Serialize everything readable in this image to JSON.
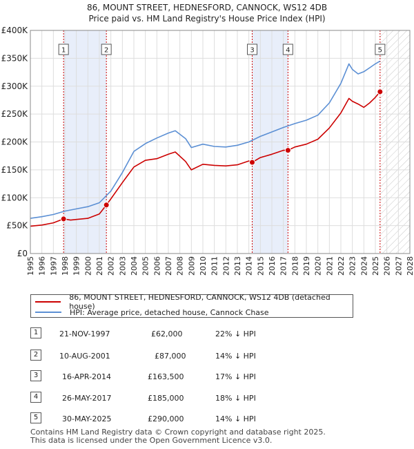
{
  "chart_data": {
    "type": "line",
    "title": "86, MOUNT STREET, HEDNESFORD, CANNOCK, WS12 4DB",
    "subtitle": "Price paid vs. HM Land Registry's House Price Index (HPI)",
    "xlim": [
      1995,
      2028
    ],
    "ylim": [
      0,
      400000
    ],
    "x_ticks": [
      "1995",
      "1996",
      "1997",
      "1998",
      "1999",
      "2000",
      "2001",
      "2002",
      "2003",
      "2004",
      "2005",
      "2006",
      "2007",
      "2008",
      "2009",
      "2010",
      "2011",
      "2012",
      "2013",
      "2014",
      "2015",
      "2016",
      "2017",
      "2018",
      "2019",
      "2020",
      "2021",
      "2022",
      "2023",
      "2024",
      "2025",
      "2026",
      "2027",
      "2028"
    ],
    "y_ticks": [
      {
        "value": 0,
        "label": "£0"
      },
      {
        "value": 50000,
        "label": "£50K"
      },
      {
        "value": 100000,
        "label": "£100K"
      },
      {
        "value": 150000,
        "label": "£150K"
      },
      {
        "value": 200000,
        "label": "£200K"
      },
      {
        "value": 250000,
        "label": "£250K"
      },
      {
        "value": 300000,
        "label": "£300K"
      },
      {
        "value": 350000,
        "label": "£350K"
      },
      {
        "value": 400000,
        "label": "£400K"
      }
    ],
    "shaded_ranges": [
      [
        1997.89,
        2001.61
      ],
      [
        2014.29,
        2017.4
      ]
    ],
    "forecast_start": 2025.41,
    "series": [
      {
        "name": "86, MOUNT STREET, HEDNESFORD, CANNOCK, WS12 4DB (detached house)",
        "color": "#cc0000",
        "points": [
          [
            1995,
            49000
          ],
          [
            1996,
            51000
          ],
          [
            1997,
            55000
          ],
          [
            1997.89,
            62000
          ],
          [
            1998.5,
            60000
          ],
          [
            1999,
            61000
          ],
          [
            2000,
            63000
          ],
          [
            2001,
            71000
          ],
          [
            2001.61,
            87000
          ],
          [
            2002,
            98000
          ],
          [
            2003,
            127000
          ],
          [
            2004,
            155000
          ],
          [
            2005,
            167000
          ],
          [
            2006,
            170000
          ],
          [
            2007,
            178000
          ],
          [
            2007.6,
            182000
          ],
          [
            2008.5,
            165000
          ],
          [
            2009,
            150000
          ],
          [
            2010,
            160000
          ],
          [
            2011,
            158000
          ],
          [
            2012,
            157000
          ],
          [
            2013,
            159000
          ],
          [
            2014,
            166000
          ],
          [
            2014.29,
            163500
          ],
          [
            2015,
            172000
          ],
          [
            2016,
            178000
          ],
          [
            2017,
            185000
          ],
          [
            2017.4,
            185000
          ],
          [
            2018,
            191000
          ],
          [
            2019,
            196000
          ],
          [
            2020,
            205000
          ],
          [
            2021,
            225000
          ],
          [
            2022,
            252000
          ],
          [
            2022.7,
            278000
          ],
          [
            2023,
            273000
          ],
          [
            2023.5,
            268000
          ],
          [
            2024,
            262000
          ],
          [
            2024.5,
            270000
          ],
          [
            2025,
            280000
          ],
          [
            2025.41,
            290000
          ]
        ]
      },
      {
        "name": "HPI: Average price, detached house, Cannock Chase",
        "color": "#5b8fd4",
        "points": [
          [
            1995,
            63000
          ],
          [
            1996,
            66000
          ],
          [
            1997,
            70000
          ],
          [
            1998,
            76000
          ],
          [
            1999,
            80000
          ],
          [
            2000,
            84000
          ],
          [
            2001,
            91000
          ],
          [
            2002,
            112000
          ],
          [
            2003,
            145000
          ],
          [
            2004,
            183000
          ],
          [
            2005,
            197000
          ],
          [
            2006,
            207000
          ],
          [
            2007,
            216000
          ],
          [
            2007.6,
            220000
          ],
          [
            2008.5,
            206000
          ],
          [
            2009,
            190000
          ],
          [
            2010,
            196000
          ],
          [
            2011,
            192000
          ],
          [
            2012,
            191000
          ],
          [
            2013,
            194000
          ],
          [
            2014,
            200000
          ],
          [
            2015,
            210000
          ],
          [
            2016,
            218000
          ],
          [
            2017,
            226000
          ],
          [
            2018,
            233000
          ],
          [
            2019,
            239000
          ],
          [
            2020,
            248000
          ],
          [
            2021,
            270000
          ],
          [
            2022,
            305000
          ],
          [
            2022.7,
            340000
          ],
          [
            2023,
            330000
          ],
          [
            2023.5,
            322000
          ],
          [
            2024,
            326000
          ],
          [
            2024.5,
            333000
          ],
          [
            2025,
            340000
          ],
          [
            2025.41,
            345000
          ]
        ]
      }
    ],
    "sales": [
      {
        "id": "1",
        "x": 1997.89,
        "y": 62000
      },
      {
        "id": "2",
        "x": 2001.61,
        "y": 87000
      },
      {
        "id": "3",
        "x": 2014.29,
        "y": 163500
      },
      {
        "id": "4",
        "x": 2017.4,
        "y": 185000
      },
      {
        "id": "5",
        "x": 2025.41,
        "y": 290000
      }
    ]
  },
  "legend": {
    "property_label": "86, MOUNT STREET, HEDNESFORD, CANNOCK, WS12 4DB (detached house)",
    "hpi_label": "HPI: Average price, detached house, Cannock Chase"
  },
  "sales_table": [
    {
      "num": "1",
      "date": "21-NOV-1997",
      "price": "£62,000",
      "hpi": "22% ↓ HPI"
    },
    {
      "num": "2",
      "date": "10-AUG-2001",
      "price": "£87,000",
      "hpi": "14% ↓ HPI"
    },
    {
      "num": "3",
      "date": "16-APR-2014",
      "price": "£163,500",
      "hpi": "17% ↓ HPI"
    },
    {
      "num": "4",
      "date": "26-MAY-2017",
      "price": "£185,000",
      "hpi": "18% ↓ HPI"
    },
    {
      "num": "5",
      "date": "30-MAY-2025",
      "price": "£290,000",
      "hpi": "14% ↓ HPI"
    }
  ],
  "footer": {
    "line1": "Contains HM Land Registry data © Crown copyright and database right 2025.",
    "line2": "This data is licensed under the Open Government Licence v3.0."
  }
}
